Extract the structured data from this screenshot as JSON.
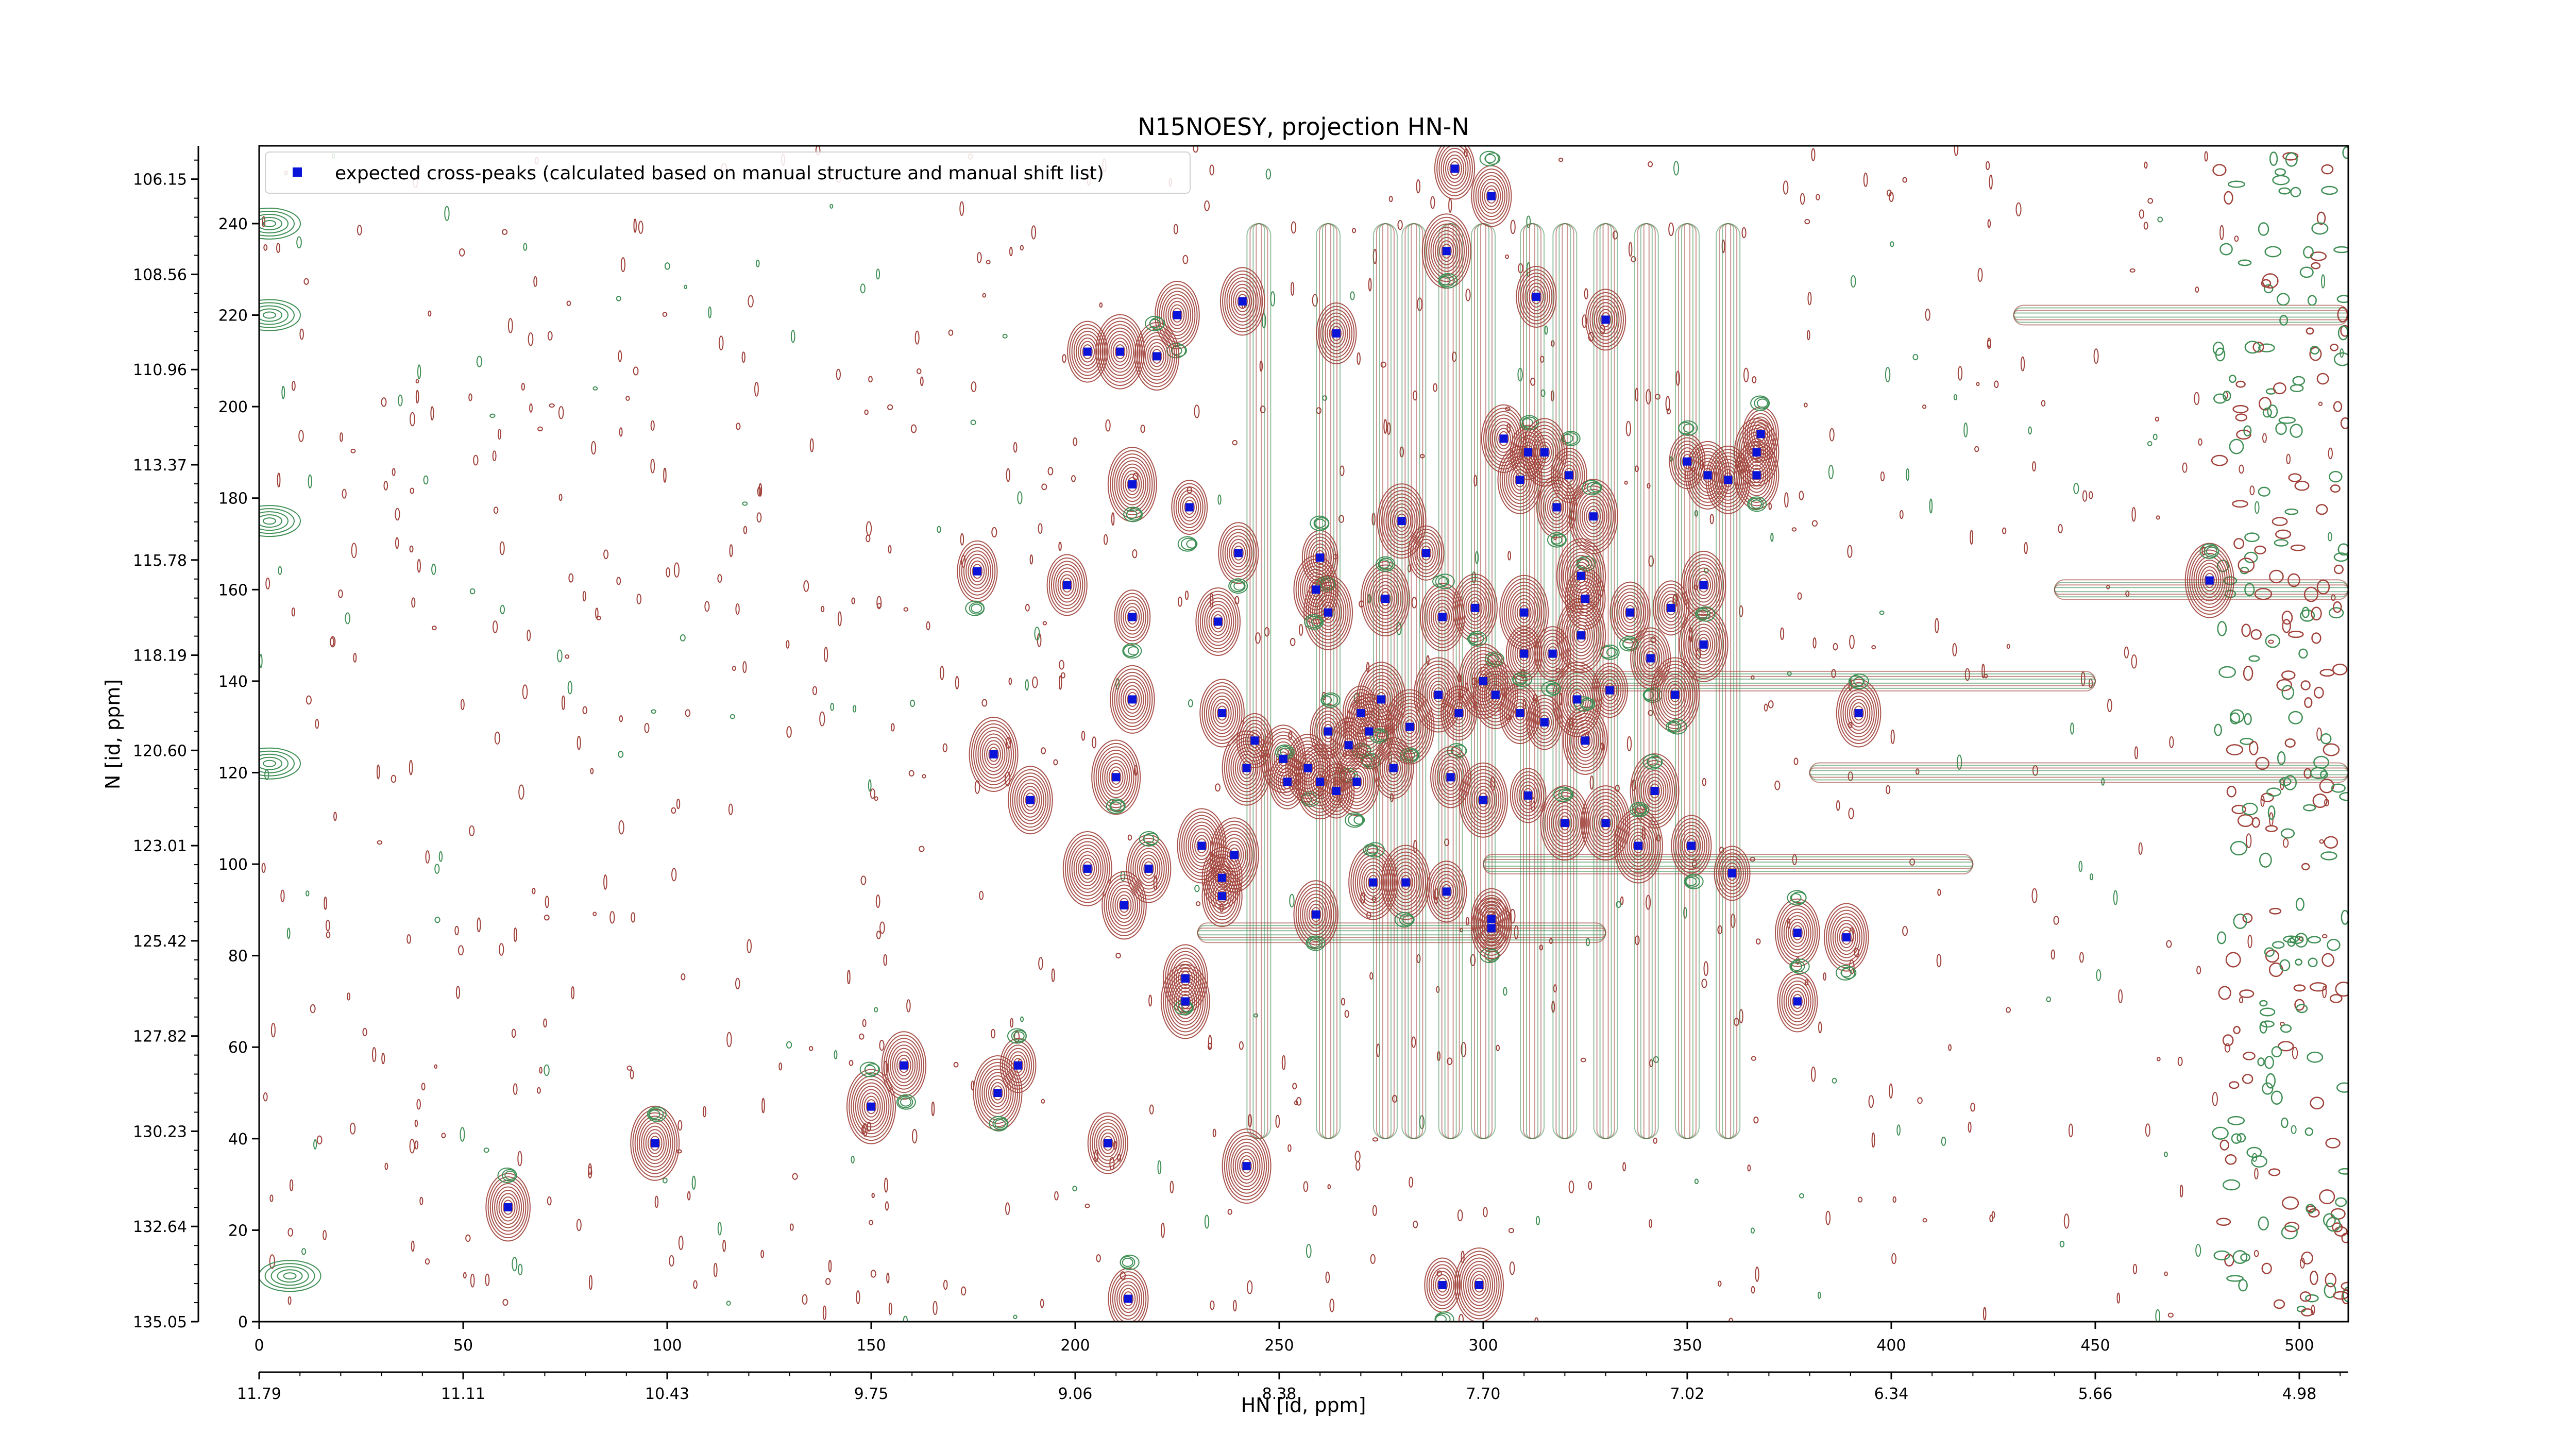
{
  "chart_data": {
    "type": "scatter",
    "title": "N15NOESY, projection HN-N",
    "xlabel": "HN [id, ppm]",
    "ylabel": "N [id, ppm]",
    "x_index_range": [
      0,
      512
    ],
    "y_index_range": [
      0,
      257
    ],
    "grid": false,
    "legend_position": "top-left",
    "legend_label": "expected cross-peaks (calculated based on manual structure and manual shift list)",
    "top_axis_ticks": [
      "0",
      "50",
      "100",
      "150",
      "200",
      "250",
      "300",
      "350",
      "400",
      "450",
      "500"
    ],
    "bottom_axis_ticks": [
      "11.79",
      "11.11",
      "10.43",
      "9.75",
      "9.06",
      "8.38",
      "7.70",
      "7.02",
      "6.34",
      "5.66",
      "4.98"
    ],
    "left_inner_ticks": [
      "0",
      "20",
      "40",
      "60",
      "80",
      "100",
      "120",
      "140",
      "160",
      "180",
      "200",
      "220",
      "240"
    ],
    "left_outer_ticks": [
      "135.05",
      "132.64",
      "130.23",
      "127.82",
      "125.42",
      "123.01",
      "120.60",
      "118.19",
      "115.78",
      "113.37",
      "110.96",
      "108.56",
      "106.15"
    ],
    "colors": {
      "positive_contour": "#a0413a",
      "negative_contour": "#3f8f55",
      "marker": "#0a14d8",
      "axis": "#000000"
    },
    "points": [
      [
        293,
        252
      ],
      [
        302,
        246
      ],
      [
        291,
        234
      ],
      [
        313,
        224
      ],
      [
        330,
        219
      ],
      [
        241,
        223
      ],
      [
        225,
        220
      ],
      [
        264,
        216
      ],
      [
        211,
        212
      ],
      [
        220,
        211
      ],
      [
        203,
        212
      ],
      [
        214,
        183
      ],
      [
        228,
        178
      ],
      [
        240,
        168
      ],
      [
        260,
        167
      ],
      [
        280,
        175
      ],
      [
        286,
        168
      ],
      [
        235,
        153
      ],
      [
        262,
        155
      ],
      [
        276,
        158
      ],
      [
        290,
        154
      ],
      [
        298,
        156
      ],
      [
        310,
        155
      ],
      [
        325,
        158
      ],
      [
        324,
        163
      ],
      [
        176,
        164
      ],
      [
        198,
        161
      ],
      [
        214,
        154
      ],
      [
        346,
        156
      ],
      [
        354,
        161
      ],
      [
        354,
        148
      ],
      [
        214,
        136
      ],
      [
        236,
        133
      ],
      [
        244,
        127
      ],
      [
        251,
        123
      ],
      [
        257,
        121
      ],
      [
        262,
        129
      ],
      [
        270,
        133
      ],
      [
        272,
        129
      ],
      [
        275,
        136
      ],
      [
        267,
        126
      ],
      [
        282,
        130
      ],
      [
        289,
        137
      ],
      [
        294,
        133
      ],
      [
        303,
        137
      ],
      [
        309,
        133
      ],
      [
        315,
        131
      ],
      [
        323,
        136
      ],
      [
        331,
        138
      ],
      [
        392,
        133
      ],
      [
        180,
        124
      ],
      [
        189,
        114
      ],
      [
        210,
        119
      ],
      [
        242,
        121
      ],
      [
        252,
        118
      ],
      [
        260,
        118
      ],
      [
        264,
        116
      ],
      [
        269,
        118
      ],
      [
        278,
        121
      ],
      [
        292,
        119
      ],
      [
        300,
        114
      ],
      [
        311,
        115
      ],
      [
        320,
        109
      ],
      [
        330,
        109
      ],
      [
        342,
        116
      ],
      [
        351,
        104
      ],
      [
        361,
        98
      ],
      [
        203,
        99
      ],
      [
        218,
        99
      ],
      [
        231,
        104
      ],
      [
        239,
        102
      ],
      [
        236,
        97
      ],
      [
        212,
        91
      ],
      [
        236,
        93
      ],
      [
        259,
        89
      ],
      [
        273,
        96
      ],
      [
        281,
        96
      ],
      [
        291,
        94
      ],
      [
        302,
        88
      ],
      [
        302,
        86
      ],
      [
        377,
        85
      ],
      [
        227,
        70
      ],
      [
        181,
        50
      ],
      [
        186,
        56
      ],
      [
        158,
        56
      ],
      [
        150,
        47
      ],
      [
        242,
        34
      ],
      [
        208,
        39
      ],
      [
        97,
        39
      ],
      [
        61,
        25
      ],
      [
        227,
        75
      ],
      [
        213,
        5
      ],
      [
        290,
        8
      ],
      [
        299,
        8
      ],
      [
        377,
        70
      ],
      [
        389,
        84
      ],
      [
        478,
        162
      ],
      [
        338,
        104
      ],
      [
        325,
        127
      ],
      [
        259,
        160
      ],
      [
        305,
        193
      ],
      [
        309,
        184
      ],
      [
        311,
        190
      ],
      [
        321,
        185
      ],
      [
        318,
        178
      ],
      [
        327,
        176
      ],
      [
        315,
        190
      ],
      [
        350,
        188
      ],
      [
        355,
        185
      ],
      [
        360,
        184
      ],
      [
        367,
        185
      ],
      [
        367,
        190
      ],
      [
        368,
        194
      ],
      [
        300,
        140
      ],
      [
        310,
        146
      ],
      [
        317,
        146
      ],
      [
        324,
        150
      ],
      [
        336,
        155
      ],
      [
        341,
        145
      ],
      [
        347,
        137
      ]
    ]
  }
}
